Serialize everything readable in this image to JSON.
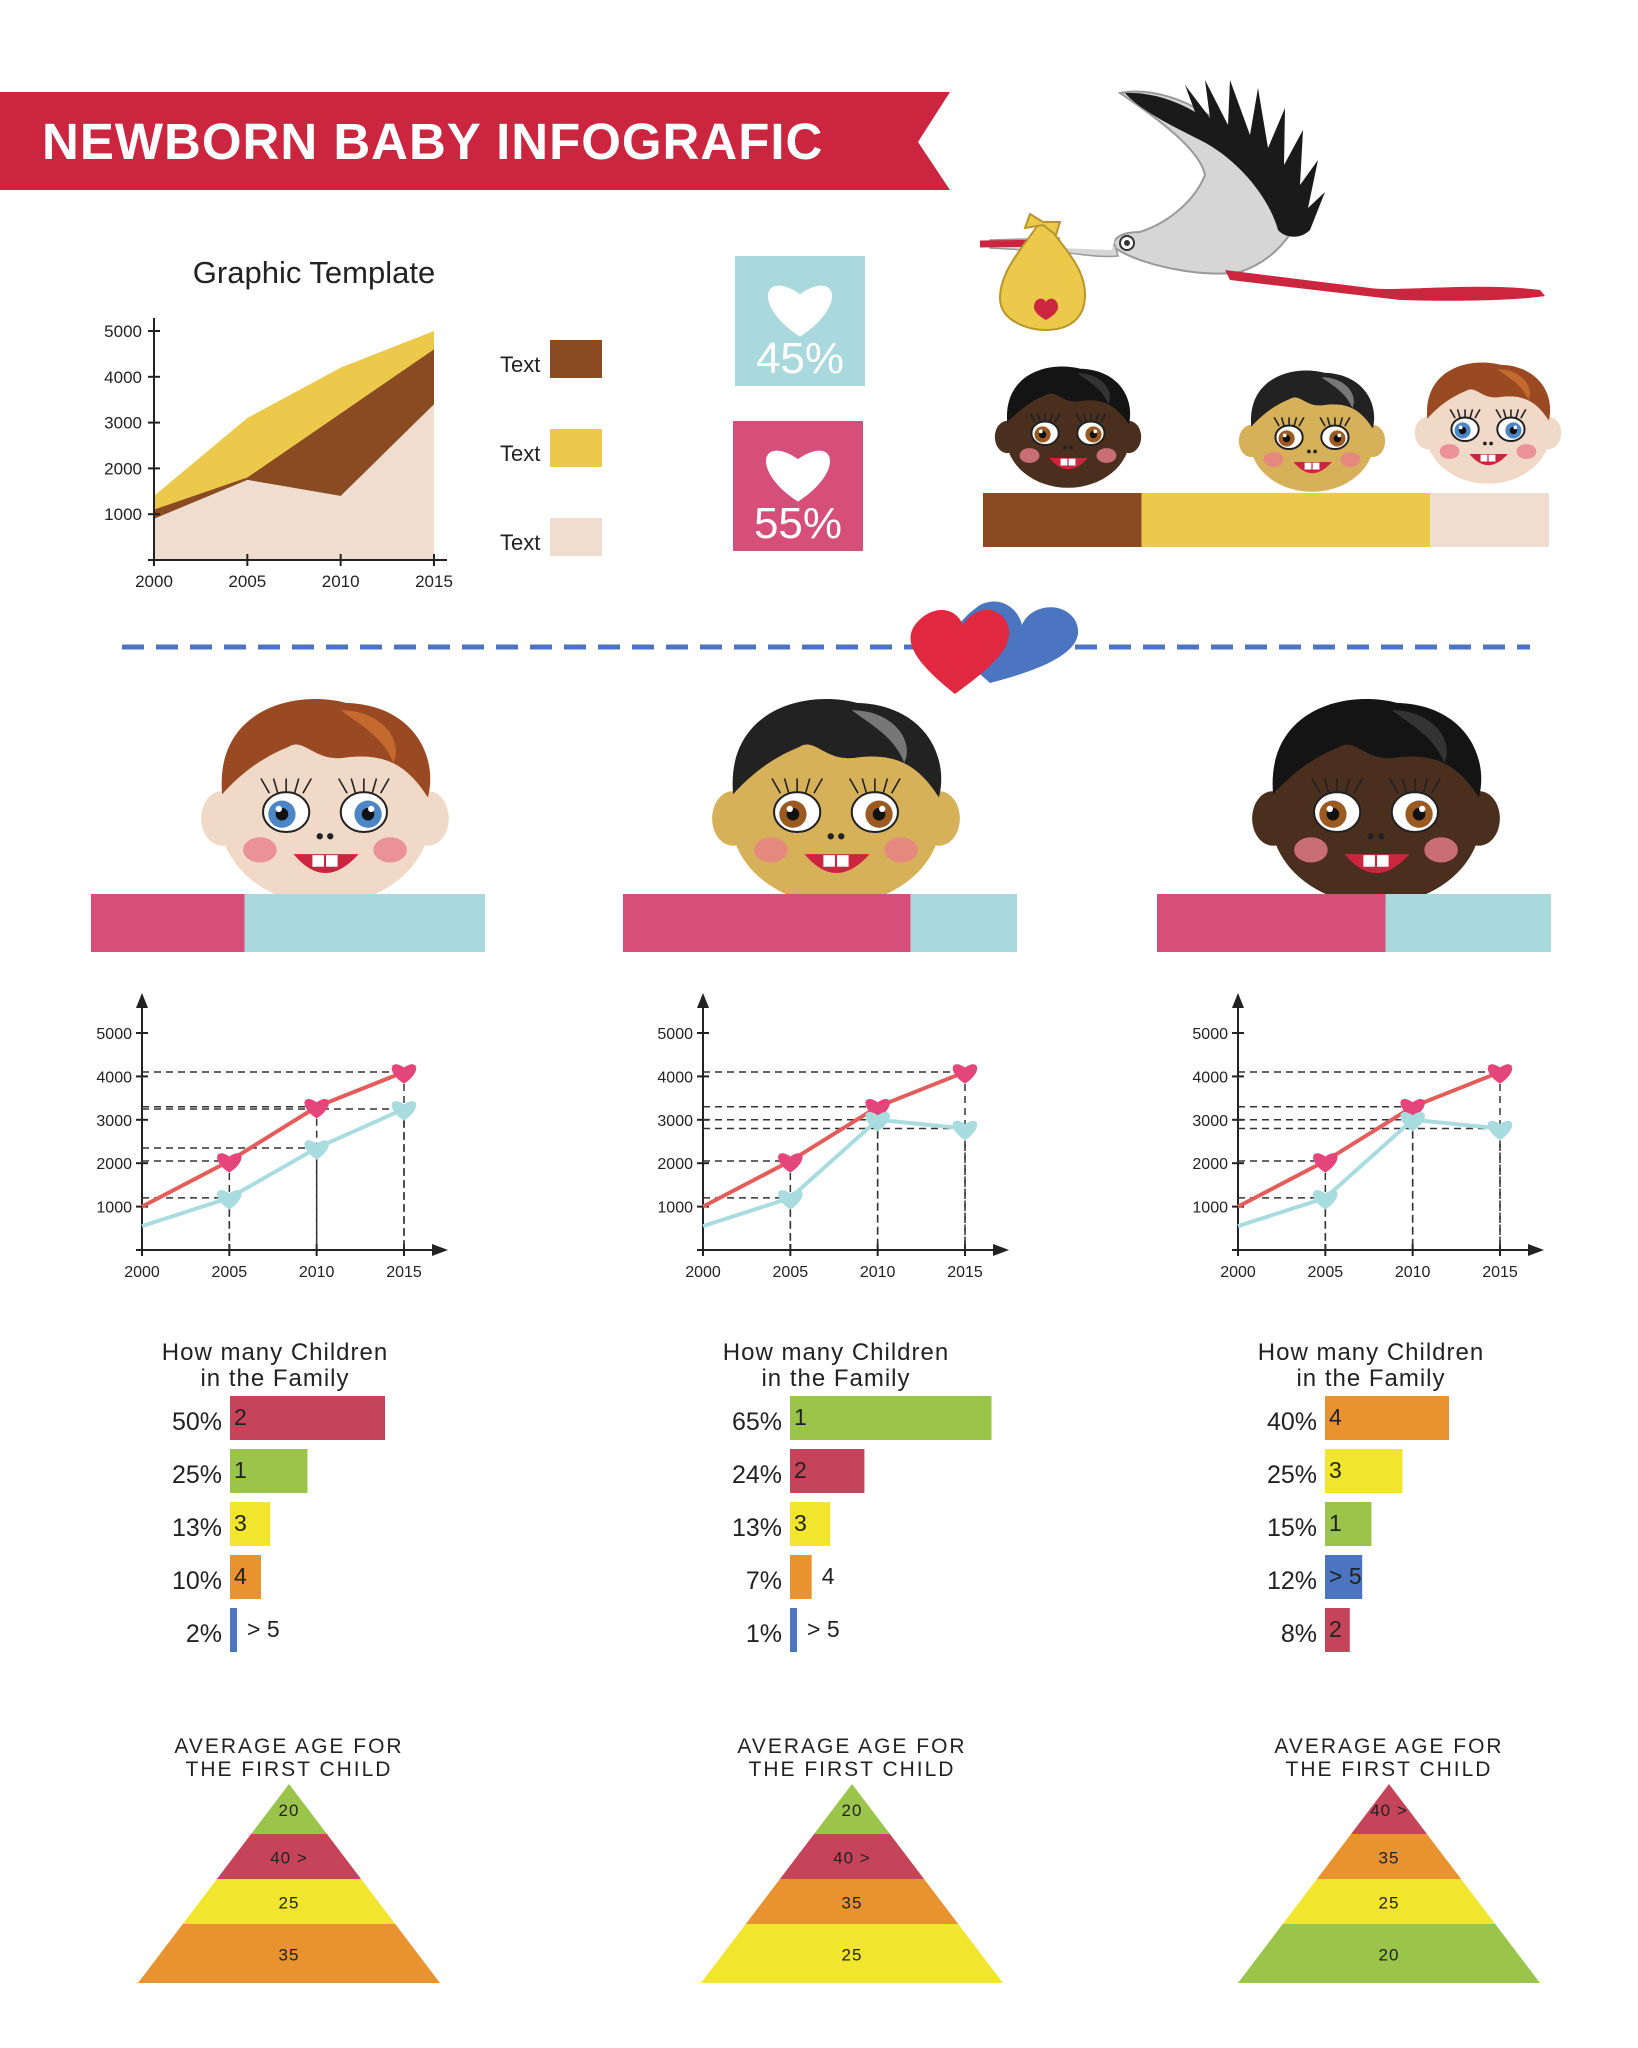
{
  "title": "NEWBORN BABY INFOGRAFIC",
  "colors": {
    "red": "#cc2540",
    "brown": "#8a4a22",
    "gold": "#ecc94b",
    "cream": "#efddd0",
    "teal": "#a9d9dc",
    "pink": "#d64f7b",
    "line_red": "#e35d5a",
    "line_teal": "#a9dcdf",
    "heart_pink": "#e4467b",
    "blue": "#4b74c1",
    "green": "#9bc54a",
    "yellow": "#f2e52e",
    "orange": "#e8932f",
    "maroon": "#c64459",
    "dash": "#4b74c1"
  },
  "icons": [
    "stork-icon",
    "baby-bundle-icon",
    "heart-icon",
    "baby-face-icon"
  ],
  "chart_data": [
    {
      "type": "area",
      "title": "Graphic Template",
      "x": [
        2000,
        2005,
        2010,
        2015
      ],
      "xlim": [
        2000,
        2015
      ],
      "ylim": [
        0,
        5000
      ],
      "yticks": [
        1000,
        2000,
        3000,
        4000,
        5000
      ],
      "series": [
        {
          "name": "Text",
          "color": "#ecc94b",
          "values": [
            1400,
            3100,
            4200,
            5000
          ]
        },
        {
          "name": "Text",
          "color": "#8a4a22",
          "values": [
            1100,
            1800,
            3200,
            4600
          ]
        },
        {
          "name": "Text",
          "color": "#efddd0",
          "values": [
            900,
            1750,
            1400,
            3400
          ]
        }
      ]
    },
    {
      "type": "line",
      "x": [
        2000,
        2005,
        2010,
        2015
      ],
      "xlim": [
        2000,
        2015
      ],
      "ylim": [
        0,
        5000
      ],
      "yticks": [
        1000,
        2000,
        3000,
        4000,
        5000
      ],
      "series": [
        {
          "color": "#e35d5a",
          "values": [
            1000,
            2050,
            3300,
            4100
          ]
        },
        {
          "color": "#a9dcdf",
          "values": [
            550,
            1200,
            2350,
            3250
          ]
        }
      ]
    },
    {
      "type": "line",
      "x": [
        2000,
        2005,
        2010,
        2015
      ],
      "xlim": [
        2000,
        2015
      ],
      "ylim": [
        0,
        5000
      ],
      "yticks": [
        1000,
        2000,
        3000,
        4000,
        5000
      ],
      "series": [
        {
          "color": "#e35d5a",
          "values": [
            1000,
            2050,
            3300,
            4100
          ]
        },
        {
          "color": "#a9dcdf",
          "values": [
            550,
            1200,
            3000,
            2800
          ]
        }
      ]
    },
    {
      "type": "line",
      "x": [
        2000,
        2005,
        2010,
        2015
      ],
      "xlim": [
        2000,
        2015
      ],
      "ylim": [
        0,
        5000
      ],
      "yticks": [
        1000,
        2000,
        3000,
        4000,
        5000
      ],
      "series": [
        {
          "color": "#e35d5a",
          "values": [
            1000,
            2050,
            3300,
            4100
          ]
        },
        {
          "color": "#a9dcdf",
          "values": [
            550,
            1200,
            3000,
            2800
          ]
        }
      ]
    },
    {
      "type": "bar",
      "title": "How many Children in the Family",
      "items": [
        {
          "pct": "50%",
          "value": 50,
          "label": "2",
          "color": "#c64459"
        },
        {
          "pct": "25%",
          "value": 25,
          "label": "1",
          "color": "#9bc54a"
        },
        {
          "pct": "13%",
          "value": 13,
          "label": "3",
          "color": "#f2e52e"
        },
        {
          "pct": "10%",
          "value": 10,
          "label": "4",
          "color": "#e8932f"
        },
        {
          "pct": "2%",
          "value": 2,
          "label": "> 5",
          "color": "#4b74c1"
        }
      ]
    },
    {
      "type": "bar",
      "title": "How many Children in the Family",
      "items": [
        {
          "pct": "65%",
          "value": 65,
          "label": "1",
          "color": "#9bc54a"
        },
        {
          "pct": "24%",
          "value": 24,
          "label": "2",
          "color": "#c64459"
        },
        {
          "pct": "13%",
          "value": 13,
          "label": "3",
          "color": "#f2e52e"
        },
        {
          "pct": "7%",
          "value": 7,
          "label": "4",
          "color": "#e8932f"
        },
        {
          "pct": "1%",
          "value": 1,
          "label": "> 5",
          "color": "#4b74c1"
        }
      ]
    },
    {
      "type": "bar",
      "title": "How many Children in the Family",
      "items": [
        {
          "pct": "40%",
          "value": 40,
          "label": "4",
          "color": "#e8932f"
        },
        {
          "pct": "25%",
          "value": 25,
          "label": "3",
          "color": "#f2e52e"
        },
        {
          "pct": "15%",
          "value": 15,
          "label": "1",
          "color": "#9bc54a"
        },
        {
          "pct": "12%",
          "value": 12,
          "label": "> 5",
          "color": "#4b74c1"
        },
        {
          "pct": "8%",
          "value": 8,
          "label": "2",
          "color": "#c64459"
        }
      ]
    },
    {
      "type": "pyramid",
      "title": "AVERAGE AGE FOR THE FIRST CHILD",
      "levels": [
        {
          "label": "20",
          "color": "#9bc54a"
        },
        {
          "label": "40 >",
          "color": "#c64459"
        },
        {
          "label": "25",
          "color": "#f2e52e"
        },
        {
          "label": "35",
          "color": "#e8932f"
        }
      ]
    },
    {
      "type": "pyramid",
      "title": "AVERAGE AGE FOR THE FIRST CHILD",
      "levels": [
        {
          "label": "20",
          "color": "#9bc54a"
        },
        {
          "label": "40 >",
          "color": "#c64459"
        },
        {
          "label": "35",
          "color": "#e8932f"
        },
        {
          "label": "25",
          "color": "#f2e52e"
        }
      ]
    },
    {
      "type": "pyramid",
      "title": "AVERAGE AGE FOR THE FIRST CHILD",
      "levels": [
        {
          "label": "40 >",
          "color": "#c64459"
        },
        {
          "label": "35",
          "color": "#e8932f"
        },
        {
          "label": "25",
          "color": "#f2e52e"
        },
        {
          "label": "20",
          "color": "#9bc54a"
        }
      ]
    }
  ],
  "percent_tiles": [
    {
      "label": "45%",
      "color": "#a9d9dc"
    },
    {
      "label": "55%",
      "color": "#d64f7b"
    }
  ],
  "skin_bar": {
    "segments": [
      {
        "fraction": 0.28,
        "color": "#8a4a22"
      },
      {
        "fraction": 0.51,
        "color": "#ecc94b"
      },
      {
        "fraction": 0.21,
        "color": "#efddd0"
      }
    ]
  },
  "gender_bars": [
    {
      "fraction": 0.39,
      "color_a": "#d64f7b",
      "color_b": "#a9d9dc"
    },
    {
      "fraction": 0.73,
      "color_a": "#d64f7b",
      "color_b": "#a9d9dc"
    },
    {
      "fraction": 0.58,
      "color_a": "#d64f7b",
      "color_b": "#a9d9dc"
    }
  ],
  "babies": [
    {
      "skin": "#f1d9c8",
      "hair": "#9a4a22",
      "hair_hi": "#c46a2e",
      "eye": "#4c86c6"
    },
    {
      "skin": "#d6b15a",
      "hair": "#222222",
      "hair_hi": "#777777",
      "eye": "#9a5a22"
    },
    {
      "skin": "#4a2e1e",
      "hair": "#141414",
      "hair_hi": "#333333",
      "eye": "#9a5a22"
    }
  ],
  "top_babies": [
    {
      "skin": "#4a2e1e",
      "hair": "#141414",
      "hair_hi": "#333333",
      "eye": "#9a5a22"
    },
    {
      "skin": "#d6b15a",
      "hair": "#222222",
      "hair_hi": "#777777",
      "eye": "#9a5a22"
    },
    {
      "skin": "#f1d9c8",
      "hair": "#9a4a22",
      "hair_hi": "#c46a2e",
      "eye": "#4c86c6"
    }
  ]
}
